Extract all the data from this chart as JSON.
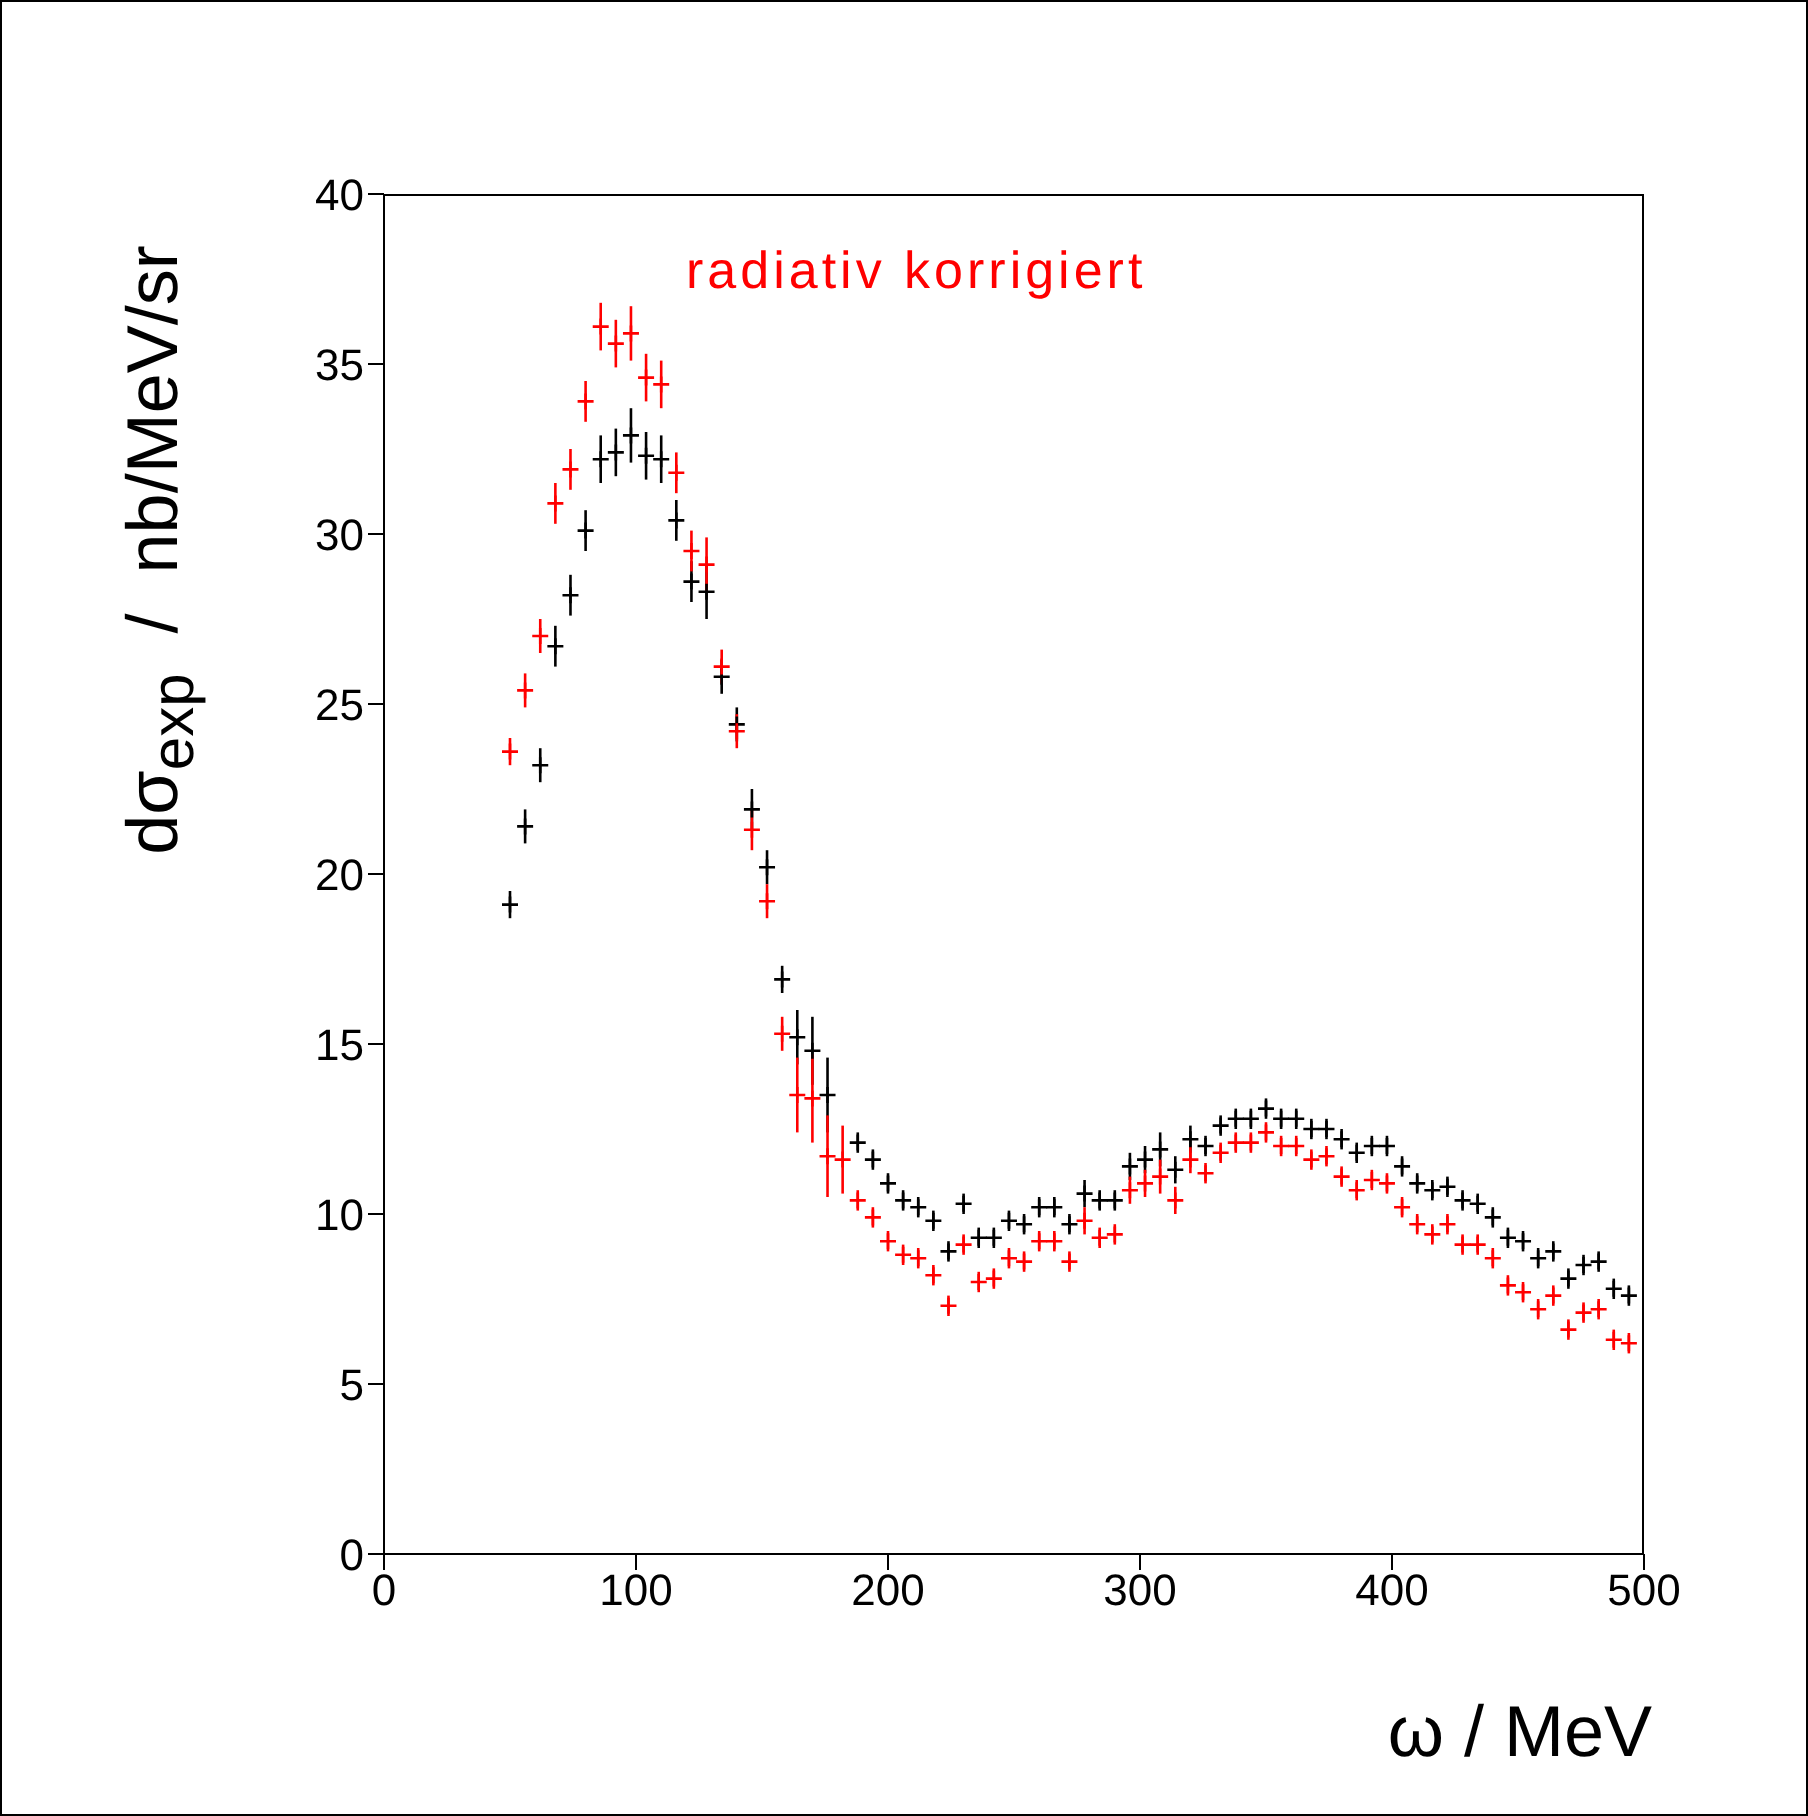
{
  "chart_data": {
    "type": "scatter",
    "xlabel": "ω / MeV",
    "ylabel": "dσ$_{exp}$  /  nb/MeV/sr",
    "xlim": [
      0,
      500
    ],
    "xticks": [
      0,
      100,
      200,
      300,
      400,
      500
    ],
    "ylim": [
      0,
      40
    ],
    "yticks": [
      0,
      5,
      10,
      15,
      20,
      25,
      30,
      35,
      40
    ],
    "grid": false,
    "legend": false,
    "marker": "cross",
    "x": [
      50,
      56,
      62,
      68,
      74,
      80,
      86,
      92,
      98,
      104,
      110,
      116,
      122,
      128,
      134,
      140,
      146,
      152,
      158,
      164,
      170,
      176,
      182,
      188,
      194,
      200,
      206,
      212,
      218,
      224,
      230,
      236,
      242,
      248,
      254,
      260,
      266,
      272,
      278,
      284,
      290,
      296,
      302,
      308,
      314,
      320,
      326,
      332,
      338,
      344,
      350,
      356,
      362,
      368,
      374,
      380,
      386,
      392,
      398,
      404,
      410,
      416,
      422,
      428,
      434,
      440,
      446,
      452,
      458,
      464,
      470,
      476,
      482,
      488,
      494
    ],
    "series": [
      {
        "color": "#000000",
        "values": [
          19.1,
          21.4,
          23.2,
          26.7,
          28.2,
          30.1,
          32.2,
          32.4,
          32.9,
          32.3,
          32.2,
          30.4,
          28.6,
          28.3,
          25.8,
          24.4,
          21.9,
          20.2,
          16.9,
          15.2,
          14.8,
          13.5,
          null,
          12.1,
          11.6,
          10.9,
          10.4,
          10.2,
          9.8,
          8.9,
          10.3,
          9.3,
          9.3,
          9.8,
          9.7,
          10.2,
          10.2,
          9.7,
          10.6,
          10.4,
          10.4,
          11.4,
          11.6,
          11.9,
          11.3,
          12.2,
          12.0,
          12.6,
          12.8,
          12.8,
          13.1,
          12.8,
          12.8,
          12.5,
          12.5,
          12.2,
          11.8,
          12.0,
          12.0,
          11.4,
          10.9,
          10.7,
          10.8,
          10.4,
          10.3,
          9.9,
          9.3,
          9.2,
          8.7,
          8.9,
          8.1,
          8.5,
          8.6,
          7.8,
          7.6
        ],
        "errors": [
          0.4,
          0.5,
          0.5,
          0.6,
          0.6,
          0.6,
          0.7,
          0.7,
          0.8,
          0.7,
          0.7,
          0.6,
          0.6,
          0.8,
          0.5,
          0.5,
          0.6,
          0.5,
          0.4,
          0.8,
          1.0,
          1.1,
          null,
          0.3,
          0.3,
          0.3,
          0.3,
          0.3,
          0.3,
          0.3,
          0.3,
          0.3,
          0.3,
          0.3,
          0.3,
          0.3,
          0.3,
          0.3,
          0.4,
          0.3,
          0.3,
          0.4,
          0.4,
          0.5,
          0.4,
          0.4,
          0.3,
          0.3,
          0.3,
          0.3,
          0.3,
          0.3,
          0.3,
          0.3,
          0.3,
          0.3,
          0.3,
          0.3,
          0.3,
          0.3,
          0.3,
          0.3,
          0.3,
          0.3,
          0.3,
          0.3,
          0.3,
          0.3,
          0.3,
          0.3,
          0.3,
          0.3,
          0.3,
          0.3,
          0.3
        ]
      },
      {
        "name": "radiativ korrigiert",
        "color": "#ff0000",
        "values": [
          23.6,
          25.4,
          27.0,
          30.9,
          31.9,
          33.9,
          36.1,
          35.6,
          35.9,
          34.6,
          34.4,
          31.8,
          29.5,
          29.1,
          26.1,
          24.2,
          21.3,
          19.2,
          15.3,
          13.5,
          13.4,
          11.7,
          11.6,
          10.4,
          9.9,
          9.2,
          8.8,
          8.7,
          8.2,
          7.3,
          9.1,
          8.0,
          8.1,
          8.7,
          8.6,
          9.2,
          9.2,
          8.6,
          9.8,
          9.3,
          9.4,
          10.7,
          10.9,
          11.1,
          10.4,
          11.6,
          11.2,
          11.8,
          12.1,
          12.1,
          12.4,
          12.0,
          12.0,
          11.6,
          11.7,
          11.1,
          10.7,
          11.0,
          10.9,
          10.2,
          9.7,
          9.4,
          9.7,
          9.1,
          9.1,
          8.7,
          7.9,
          7.7,
          7.2,
          7.6,
          6.6,
          7.1,
          7.2,
          6.3,
          6.2
        ],
        "errors": [
          0.4,
          0.5,
          0.5,
          0.6,
          0.6,
          0.6,
          0.7,
          0.7,
          0.8,
          0.7,
          0.7,
          0.6,
          0.6,
          0.8,
          0.5,
          0.5,
          0.6,
          0.5,
          0.5,
          1.1,
          1.3,
          1.2,
          1.0,
          0.3,
          0.3,
          0.3,
          0.3,
          0.3,
          0.3,
          0.3,
          0.3,
          0.3,
          0.3,
          0.3,
          0.3,
          0.3,
          0.3,
          0.3,
          0.4,
          0.3,
          0.3,
          0.4,
          0.4,
          0.5,
          0.4,
          0.4,
          0.3,
          0.3,
          0.3,
          0.3,
          0.3,
          0.3,
          0.3,
          0.3,
          0.3,
          0.3,
          0.3,
          0.3,
          0.3,
          0.3,
          0.3,
          0.3,
          0.3,
          0.3,
          0.3,
          0.3,
          0.3,
          0.3,
          0.3,
          0.3,
          0.3,
          0.3,
          0.3,
          0.3,
          0.3
        ]
      }
    ]
  }
}
